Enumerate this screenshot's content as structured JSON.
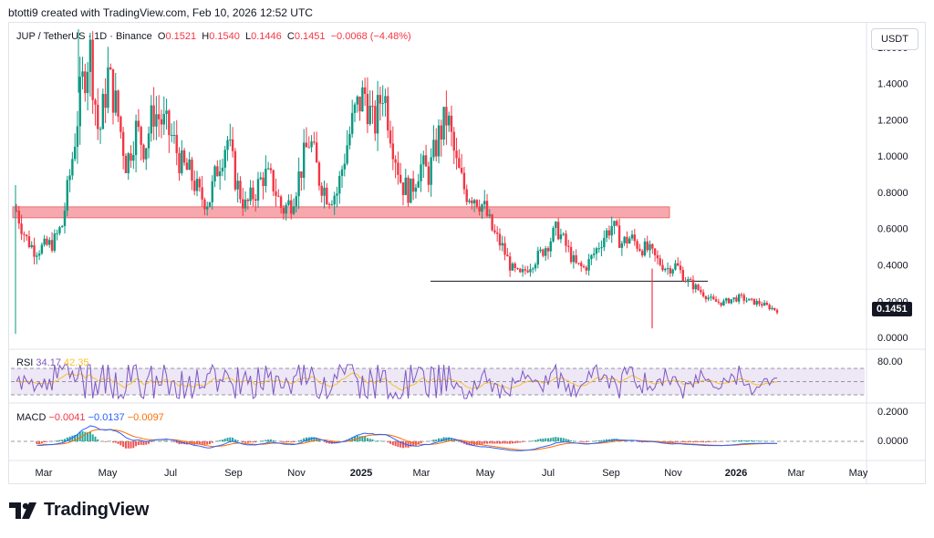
{
  "header": {
    "text": "btotti9 created with TradingView.com, Feb 10, 2026 12:52 UTC"
  },
  "legend": {
    "symbol": "JUP / TetherUS · 1D · Binance",
    "open_label": "O",
    "open": "0.1521",
    "high_label": "H",
    "high": "0.1540",
    "low_label": "L",
    "low": "0.1446",
    "close_label": "C",
    "close": "0.1451",
    "change": "−0.0068 (−4.48%)"
  },
  "currency": "USDT",
  "last_price": "0.1451",
  "rsi": {
    "label": "RSI",
    "value": "34.17",
    "ma": "42.35",
    "axis_labels": [
      "80.00"
    ]
  },
  "macd": {
    "label": "MACD",
    "hist": "−0.0041",
    "macd": "−0.0137",
    "signal": "−0.0097",
    "axis_labels": [
      "0.2000",
      "0.0000"
    ]
  },
  "brand": "TradingView",
  "colors": {
    "up": "#089981",
    "down": "#f23645",
    "zone": "#f7a8ae",
    "rsi_line": "#7e57c2",
    "rsi_ma": "#fbc02d",
    "macd_line": "#2962ff",
    "signal_line": "#ff6d00"
  },
  "chart_data": {
    "type": "candlestick",
    "title": "JUP / TetherUS · 1D · Binance",
    "y_ticks": [
      "1.6000",
      "1.4000",
      "1.2000",
      "1.0000",
      "0.8000",
      "0.6000",
      "0.4000",
      "0.2000",
      "0.0000"
    ],
    "ylim": [
      -0.05,
      1.72
    ],
    "x_ticks": [
      "Mar",
      "May",
      "Jul",
      "Sep",
      "Nov",
      "2025",
      "Mar",
      "May",
      "Jul",
      "Sep",
      "Nov",
      "2026",
      "Mar",
      "May"
    ],
    "series_close": [
      0.7,
      0.55,
      0.48,
      0.5,
      0.52,
      0.62,
      0.95,
      1.35,
      1.6,
      1.1,
      1.45,
      1.25,
      0.95,
      1.15,
      1.05,
      1.25,
      1.18,
      1.1,
      0.95,
      0.9,
      0.78,
      0.75,
      0.95,
      1.1,
      0.85,
      0.72,
      0.8,
      0.9,
      0.85,
      0.7,
      0.75,
      0.92,
      1.1,
      0.88,
      0.78,
      0.8,
      1.05,
      1.25,
      1.35,
      1.15,
      1.38,
      1.1,
      0.85,
      0.8,
      0.95,
      0.9,
      1.1,
      1.22,
      0.95,
      0.8,
      0.78,
      0.72,
      0.58,
      0.5,
      0.38,
      0.34,
      0.4,
      0.45,
      0.52,
      0.6,
      0.5,
      0.4,
      0.38,
      0.46,
      0.55,
      0.62,
      0.52,
      0.55,
      0.5,
      0.48,
      0.42,
      0.38,
      0.4,
      0.32,
      0.28,
      0.24,
      0.2,
      0.19,
      0.21,
      0.22,
      0.2,
      0.19,
      0.17,
      0.15
    ],
    "annotations": {
      "resistance_zone": [
        0.66,
        0.72
      ],
      "support_line": 0.31
    }
  }
}
